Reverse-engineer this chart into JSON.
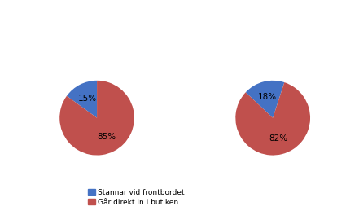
{
  "pie1": {
    "values": [
      15,
      85
    ],
    "labels": [
      "15%",
      "85%"
    ],
    "colors": [
      "#4472C4",
      "#C0504D"
    ],
    "startangle": 90
  },
  "pie2": {
    "values": [
      18,
      82
    ],
    "labels": [
      "18%",
      "82%"
    ],
    "colors": [
      "#4472C4",
      "#C0504D"
    ],
    "startangle": 72
  },
  "legend_labels": [
    "Stannar vid frontbordet",
    "Går direkt in i butiken"
  ],
  "legend_colors": [
    "#4472C4",
    "#C0504D"
  ],
  "label_fontsize": 7.5
}
